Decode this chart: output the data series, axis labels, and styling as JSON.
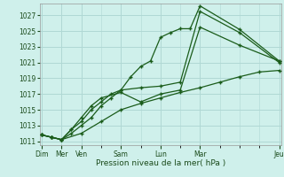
{
  "background_color": "#cff0eb",
  "grid_color": "#b0d8d4",
  "line_color": "#1a5c1a",
  "marker_color": "#1a5c1a",
  "xlabel": "Pression niveau de la mer( hPa )",
  "ylim": [
    1010.5,
    1028.5
  ],
  "yticks": [
    1011,
    1013,
    1015,
    1017,
    1019,
    1021,
    1023,
    1025,
    1027
  ],
  "xlim": [
    -0.1,
    12.1
  ],
  "xtick_major_pos": [
    0,
    1,
    2,
    4,
    6,
    8,
    12
  ],
  "xtick_major_labels": [
    "Dim",
    "Mer",
    "Ven",
    "Sam",
    "Lun",
    "Mar",
    "Jeu"
  ],
  "lines": [
    {
      "x": [
        0.0,
        0.5,
        1.0,
        1.5,
        2.0,
        2.5,
        3.0,
        3.5,
        4.0,
        4.5,
        5.0,
        5.5,
        6.0,
        6.5,
        7.0,
        7.5,
        8.0,
        10.0,
        12.0
      ],
      "y": [
        1011.8,
        1011.5,
        1011.2,
        1012.0,
        1013.0,
        1014.0,
        1015.5,
        1016.5,
        1017.5,
        1019.2,
        1020.5,
        1021.2,
        1024.2,
        1024.8,
        1025.3,
        1025.3,
        1028.2,
        1025.2,
        1021.2
      ]
    },
    {
      "x": [
        0.0,
        0.5,
        1.0,
        1.5,
        2.0,
        2.5,
        3.0,
        3.5,
        4.0,
        5.0,
        6.0,
        7.0,
        8.0,
        10.0,
        12.0
      ],
      "y": [
        1011.8,
        1011.5,
        1011.2,
        1012.5,
        1013.5,
        1015.0,
        1016.0,
        1017.0,
        1017.5,
        1017.8,
        1018.0,
        1018.5,
        1027.5,
        1024.8,
        1021.0
      ]
    },
    {
      "x": [
        0.0,
        0.5,
        1.0,
        1.5,
        2.0,
        2.5,
        3.0,
        4.0,
        5.0,
        6.0,
        7.0,
        8.0,
        10.0,
        12.0
      ],
      "y": [
        1011.8,
        1011.5,
        1011.2,
        1012.5,
        1014.0,
        1015.5,
        1016.5,
        1017.2,
        1016.0,
        1017.0,
        1017.5,
        1025.5,
        1023.2,
        1021.2
      ]
    },
    {
      "x": [
        0.0,
        0.5,
        1.0,
        2.0,
        3.0,
        4.0,
        5.0,
        6.0,
        7.0,
        8.0,
        9.0,
        10.0,
        11.0,
        12.0
      ],
      "y": [
        1011.8,
        1011.5,
        1011.2,
        1012.0,
        1013.5,
        1015.0,
        1015.8,
        1016.5,
        1017.2,
        1017.8,
        1018.5,
        1019.2,
        1019.8,
        1020.0
      ]
    }
  ]
}
